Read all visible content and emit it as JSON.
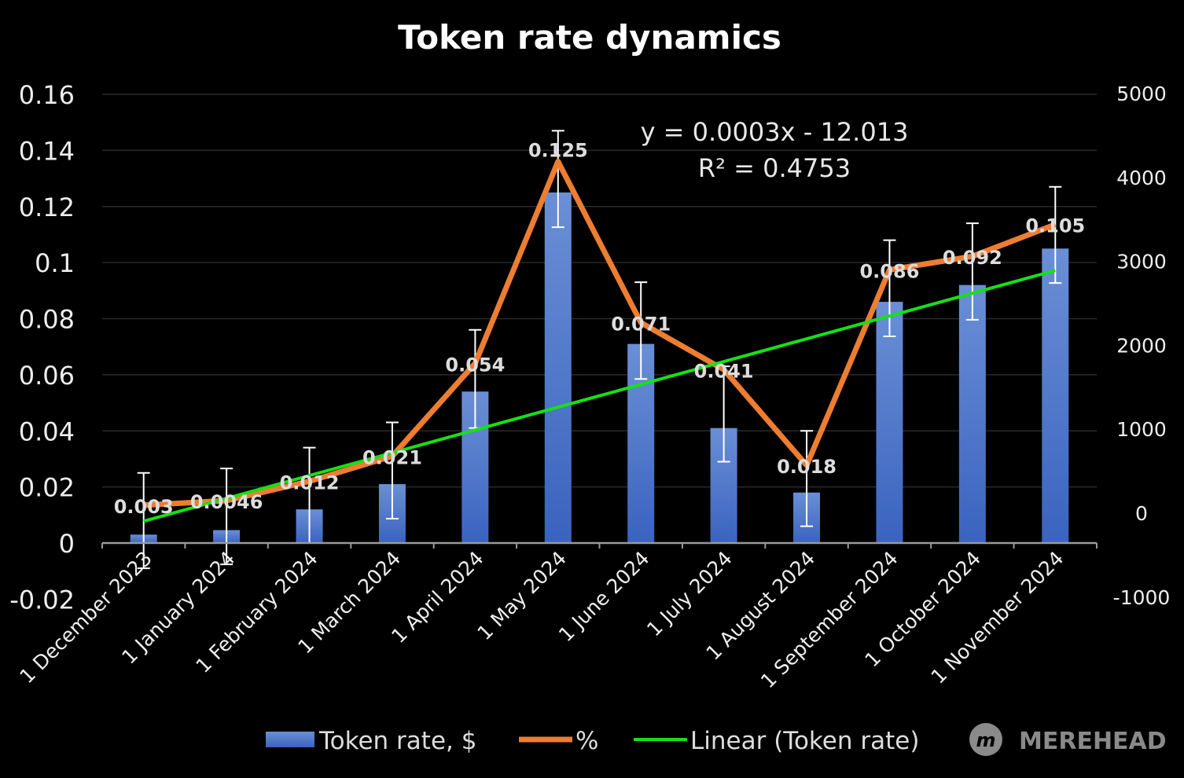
{
  "chart_data": {
    "type": "bar",
    "title": "Token rate dynamics",
    "categories": [
      "1 December 2023",
      "1 January 2024",
      "1 February 2024",
      "1 March 2024",
      "1 April 2024",
      "1 May 2024",
      "1 June 2024",
      "1 July 2024",
      "1 August 2024",
      "1 September 2024",
      "1 October 2024",
      "1 November 2024"
    ],
    "series": [
      {
        "name": "Token rate, $",
        "type": "bar",
        "axis": "left",
        "color": "#4472c4",
        "values": [
          0.003,
          0.0046,
          0.012,
          0.021,
          0.054,
          0.125,
          0.071,
          0.041,
          0.018,
          0.086,
          0.092,
          0.105
        ],
        "labels": [
          "0.003",
          "0.0046",
          "0.012",
          "0.021",
          "0.054",
          "0.125",
          "0.071",
          "0.041",
          "0.018",
          "0.086",
          "0.092",
          "0.105"
        ],
        "error_upper": [
          0.025,
          0.0266,
          0.034,
          0.043,
          0.076,
          0.147,
          0.093,
          0.063,
          0.04,
          0.108,
          0.114,
          0.127
        ],
        "error_lower": [
          -0.009,
          -0.0076,
          0,
          0.0087,
          0.041,
          0.1126,
          0.0585,
          0.029,
          0.006,
          0.0737,
          0.0796,
          0.0927
        ]
      },
      {
        "name": "%",
        "type": "line",
        "axis": "right",
        "color": "#ed7d31",
        "values": [
          95,
          150,
          380,
          680,
          1785,
          4190,
          2270,
          1710,
          570,
          2900,
          3060,
          3440
        ]
      },
      {
        "name": "Linear (Token rate)",
        "type": "trendline",
        "axis": "left",
        "color": "#16e016",
        "start": 0.0078,
        "end": 0.0972
      }
    ],
    "trendline_equation": "y = 0.0003x - 12.013",
    "trendline_r2": "R² = 0.4753",
    "left_axis": {
      "ylim": [
        -0.02,
        0.16
      ],
      "ticks": [
        "-0.02",
        "0",
        "0.02",
        "0.04",
        "0.06",
        "0.08",
        "0.1",
        "0.12",
        "0.14",
        "0.16"
      ],
      "values": [
        -0.02,
        0,
        0.02,
        0.04,
        0.06,
        0.08,
        0.1,
        0.12,
        0.14,
        0.16
      ]
    },
    "right_axis": {
      "ylim": [
        -1000,
        5000
      ],
      "ticks": [
        "-1000",
        "0",
        "1000",
        "2000",
        "3000",
        "4000",
        "5000"
      ],
      "values": [
        -1000,
        0,
        1000,
        2000,
        3000,
        4000,
        5000
      ]
    },
    "grid": true,
    "legend": "bottom"
  },
  "watermark": "MEREHEAD"
}
